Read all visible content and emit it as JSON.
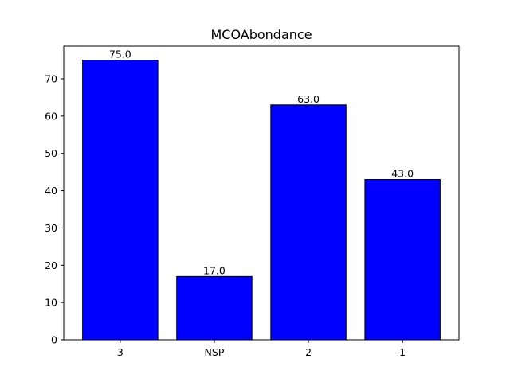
{
  "chart_data": {
    "type": "bar",
    "title": "MCOAbondance",
    "xlabel": "",
    "ylabel": "",
    "categories": [
      "3",
      "NSP",
      "2",
      "1"
    ],
    "values": [
      75.0,
      17.0,
      63.0,
      43.0
    ],
    "data_labels": [
      "75.0",
      "17.0",
      "63.0",
      "43.0"
    ],
    "ylim": [
      0,
      78.75
    ],
    "yticks": [
      0,
      10,
      20,
      30,
      40,
      50,
      60,
      70
    ],
    "grid": false,
    "colors": {
      "bar_fill": "#0000ff",
      "bar_edge": "#000000",
      "axis": "#000000"
    }
  }
}
